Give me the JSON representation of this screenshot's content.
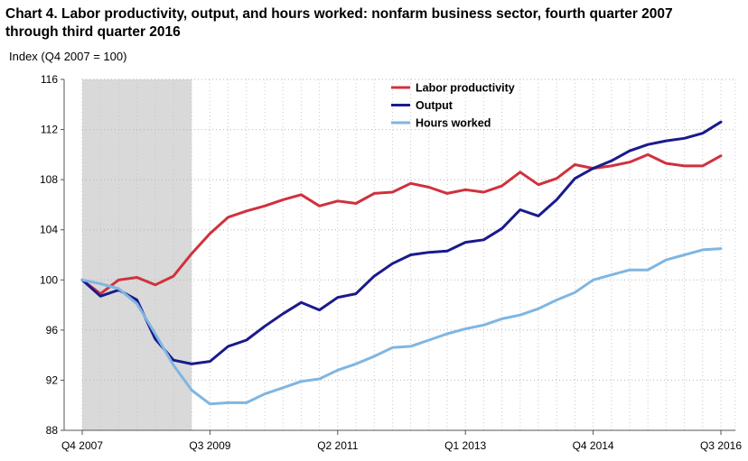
{
  "chart_data": {
    "type": "line",
    "title": "Chart 4. Labor productivity, output, and hours worked: nonfarm business sector, fourth quarter 2007 through third quarter 2016",
    "ylabel": "Index (Q4 2007 = 100)",
    "xlabel": "",
    "ylim": [
      88,
      116
    ],
    "yticks": [
      88,
      92,
      96,
      100,
      104,
      108,
      112,
      116
    ],
    "x": [
      "Q4 2007",
      "Q1 2008",
      "Q2 2008",
      "Q3 2008",
      "Q4 2008",
      "Q1 2009",
      "Q2 2009",
      "Q3 2009",
      "Q4 2009",
      "Q1 2010",
      "Q2 2010",
      "Q3 2010",
      "Q4 2010",
      "Q1 2011",
      "Q2 2011",
      "Q3 2011",
      "Q4 2011",
      "Q1 2012",
      "Q2 2012",
      "Q3 2012",
      "Q4 2012",
      "Q1 2013",
      "Q2 2013",
      "Q3 2013",
      "Q4 2013",
      "Q1 2014",
      "Q2 2014",
      "Q3 2014",
      "Q4 2014",
      "Q1 2015",
      "Q2 2015",
      "Q3 2015",
      "Q4 2015",
      "Q1 2016",
      "Q2 2016",
      "Q3 2016"
    ],
    "xtick_labels": [
      {
        "index": 0,
        "label": "Q4 2007"
      },
      {
        "index": 7,
        "label": "Q3 2009"
      },
      {
        "index": 14,
        "label": "Q2 2011"
      },
      {
        "index": 21,
        "label": "Q1 2013"
      },
      {
        "index": 28,
        "label": "Q4 2014"
      },
      {
        "index": 35,
        "label": "Q3 2016"
      }
    ],
    "shaded_region": {
      "from": "Q4 2007",
      "to": "Q2 2009",
      "color": "#d9d9d9"
    },
    "grid": {
      "horizontal": true,
      "vertical": true,
      "style": "dotted"
    },
    "legend_placement": "top-center",
    "series": [
      {
        "name": "Labor productivity",
        "color": "#d0313d",
        "values": [
          100.0,
          98.9,
          100.0,
          100.2,
          99.6,
          100.3,
          102.1,
          103.7,
          105.0,
          105.5,
          105.9,
          106.4,
          106.8,
          105.9,
          106.3,
          106.1,
          106.9,
          107.0,
          107.7,
          107.4,
          106.9,
          107.2,
          107.0,
          107.5,
          108.6,
          107.6,
          108.1,
          109.2,
          108.9,
          109.1,
          109.4,
          110.0,
          109.3,
          109.1,
          109.1,
          109.9
        ]
      },
      {
        "name": "Output",
        "color": "#1a1a8c",
        "values": [
          100.0,
          98.7,
          99.2,
          98.4,
          95.3,
          93.6,
          93.3,
          93.5,
          94.7,
          95.2,
          96.3,
          97.3,
          98.2,
          97.6,
          98.6,
          98.9,
          100.3,
          101.3,
          102.0,
          102.2,
          102.3,
          103.0,
          103.2,
          104.1,
          105.6,
          105.1,
          106.4,
          108.1,
          108.9,
          109.5,
          110.3,
          110.8,
          111.1,
          111.3,
          111.7,
          112.6
        ]
      },
      {
        "name": "Hours worked",
        "color": "#7fb6e2",
        "values": [
          100.0,
          99.7,
          99.3,
          98.1,
          95.7,
          93.2,
          91.2,
          90.1,
          90.2,
          90.2,
          90.9,
          91.4,
          91.9,
          92.1,
          92.8,
          93.3,
          93.9,
          94.6,
          94.7,
          95.2,
          95.7,
          96.1,
          96.4,
          96.9,
          97.2,
          97.7,
          98.4,
          99.0,
          100.0,
          100.4,
          100.8,
          100.8,
          101.6,
          102.0,
          102.4,
          102.5
        ]
      }
    ]
  }
}
